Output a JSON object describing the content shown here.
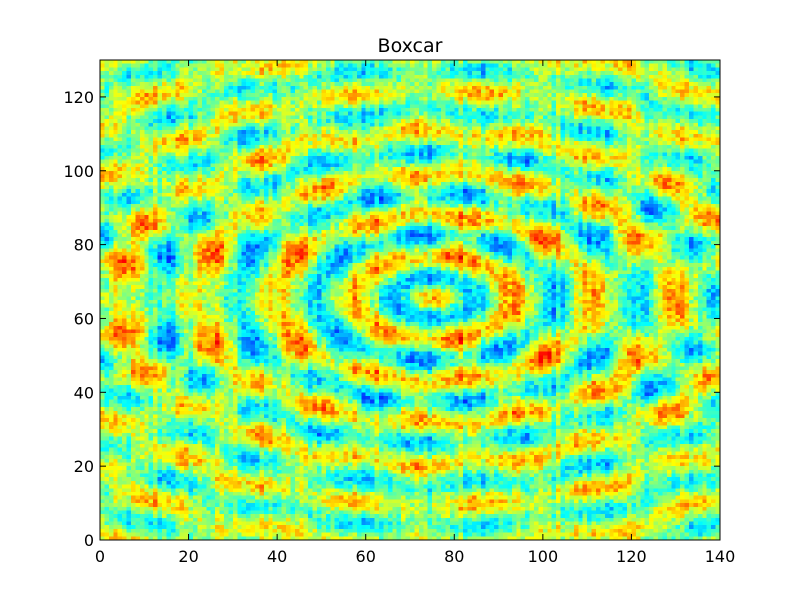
{
  "chart_data": {
    "type": "heatmap",
    "title": "Boxcar",
    "xlabel": "",
    "ylabel": "",
    "xlim": [
      0,
      140
    ],
    "ylim": [
      0,
      130
    ],
    "x_ticks": [
      0,
      20,
      40,
      60,
      80,
      100,
      120,
      140
    ],
    "y_ticks": [
      0,
      20,
      40,
      60,
      80,
      100,
      120
    ],
    "x_tick_labels": [
      "0",
      "20",
      "40",
      "60",
      "80",
      "100",
      "120",
      "140"
    ],
    "y_tick_labels": [
      "0",
      "20",
      "40",
      "60",
      "80",
      "100",
      "120"
    ],
    "grid": false,
    "colormap": "jet",
    "pattern": {
      "description_free_params": true,
      "centers": [
        [
          75,
          65
        ],
        [
          -5,
          65
        ],
        [
          148,
          65
        ]
      ],
      "ring_period": 18,
      "aspect_y": 1.6
    }
  }
}
